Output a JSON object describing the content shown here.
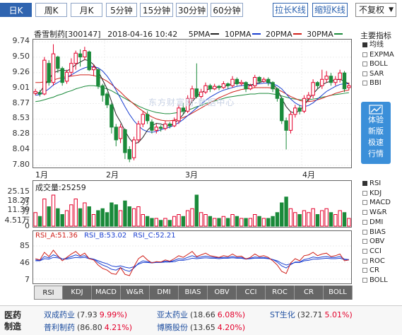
{
  "toolbar": {
    "periods": [
      "日K",
      "周K",
      "月K",
      "5分钟",
      "15分钟",
      "30分钟",
      "60分钟"
    ],
    "active_period": 0,
    "zoom_in": "拉长K线",
    "zoom_out": "缩短K线",
    "adjust": "不复权"
  },
  "header": {
    "stock": "香雪制药[300147]",
    "datetime": "2018-04-16 10:42",
    "ma5": "5PMA",
    "ma10": "10PMA",
    "ma20": "20PMA",
    "ma30": "30PMA"
  },
  "main_indicators": {
    "title": "主要指标",
    "items": [
      "均线",
      "EXPMA",
      "BOLL",
      "SAR",
      "BBI"
    ],
    "selected": 0
  },
  "promo": {
    "text": [
      "体验",
      "新版",
      "极速",
      "行情"
    ]
  },
  "watermark": "东方财富网-数据中心",
  "price_axis": [
    "9.74",
    "9.50",
    "9.26",
    "9.01",
    "8.77",
    "8.53",
    "8.28",
    "8.04",
    "7.80"
  ],
  "month_labels": [
    "1月",
    "2月",
    "3月",
    "4月"
  ],
  "volume": {
    "title": "成交量",
    "value": "25259",
    "axis": [
      "25.15万",
      "18.27万",
      "11.39万",
      "4.51万",
      "0"
    ]
  },
  "rsi": {
    "a_label": "RSI_A:51.36",
    "b_label": "RSI_B:53.02",
    "c_label": "RSI_C:52.21",
    "axis": [
      "85",
      "46",
      "7"
    ]
  },
  "side_indicators": {
    "items": [
      "RSI",
      "KDJ",
      "MACD",
      "W&R",
      "DMI",
      "BIAS",
      "OBV",
      "CCI",
      "ROC",
      "CR",
      "BOLL"
    ],
    "selected": 0
  },
  "tabs": {
    "items": [
      "RSI",
      "KDJ",
      "MACD",
      "W&R",
      "DMI",
      "BIAS",
      "OBV",
      "CCI",
      "ROC",
      "CR",
      "BOLL"
    ],
    "active": 0
  },
  "news": {
    "sector": "医药\n制造",
    "items": [
      {
        "name": "双成药业",
        "price": "(7.93",
        "pct": "9.99%)"
      },
      {
        "name": "亚太药业",
        "price": "(18.66",
        "pct": "6.08%)"
      },
      {
        "name": "ST生化",
        "price": "(32.71",
        "pct": "5.01%)"
      },
      {
        "name": "普利制药",
        "price": "(86.80",
        "pct": "4.21%)"
      },
      {
        "name": "博腾股份",
        "price": "(13.65",
        "pct": "4.20%)"
      }
    ]
  },
  "colors": {
    "up": "#e4002b",
    "down": "#1a8a3a",
    "accent": "#2f64b0",
    "ma5": "#222222",
    "ma10": "#1a3fd0",
    "ma20": "#d0201a",
    "ma30": "#1a8a3a"
  },
  "chart_data": {
    "type": "candlestick",
    "ylim": [
      7.8,
      9.74
    ],
    "candles": [
      [
        8.93,
        8.96,
        8.9,
        9.0
      ],
      [
        8.94,
        8.92,
        8.88,
        8.98
      ],
      [
        8.92,
        9.45,
        8.9,
        9.5
      ],
      [
        9.4,
        9.1,
        9.05,
        9.45
      ],
      [
        9.1,
        9.55,
        9.05,
        9.7
      ],
      [
        9.5,
        9.32,
        9.25,
        9.52
      ],
      [
        9.32,
        9.1,
        9.05,
        9.35
      ],
      [
        9.12,
        9.26,
        9.08,
        9.3
      ],
      [
        9.26,
        9.4,
        9.2,
        9.48
      ],
      [
        9.4,
        9.56,
        9.3,
        9.6
      ],
      [
        9.55,
        9.5,
        9.35,
        9.62
      ],
      [
        9.5,
        9.6,
        9.45,
        9.66
      ],
      [
        9.58,
        9.3,
        9.28,
        9.6
      ],
      [
        9.3,
        9.34,
        9.2,
        9.38
      ],
      [
        9.3,
        9.05,
        9.0,
        9.32
      ],
      [
        9.05,
        8.9,
        8.8,
        9.08
      ],
      [
        8.92,
        8.75,
        8.7,
        8.95
      ],
      [
        8.75,
        8.4,
        8.3,
        8.78
      ],
      [
        8.4,
        8.2,
        8.1,
        8.45
      ],
      [
        8.22,
        8.4,
        8.15,
        8.45
      ],
      [
        8.36,
        8.0,
        7.9,
        8.38
      ],
      [
        8.05,
        7.9,
        7.85,
        8.1
      ],
      [
        7.92,
        8.2,
        7.88,
        8.25
      ],
      [
        8.2,
        8.45,
        8.15,
        8.5
      ],
      [
        8.45,
        8.6,
        8.4,
        8.65
      ],
      [
        8.6,
        8.5,
        8.45,
        8.65
      ],
      [
        8.48,
        8.35,
        8.3,
        8.52
      ],
      [
        8.35,
        8.4,
        8.3,
        8.45
      ],
      [
        8.4,
        8.38,
        8.33,
        8.43
      ],
      [
        8.38,
        8.45,
        8.35,
        8.5
      ],
      [
        8.45,
        8.42,
        8.38,
        8.48
      ],
      [
        8.42,
        8.5,
        8.4,
        8.55
      ],
      [
        8.5,
        8.7,
        8.45,
        8.75
      ],
      [
        8.7,
        8.65,
        8.6,
        8.78
      ],
      [
        8.65,
        8.85,
        8.62,
        8.9
      ],
      [
        8.85,
        9.0,
        8.8,
        9.05
      ],
      [
        9.0,
        8.88,
        8.85,
        9.4
      ],
      [
        8.88,
        8.95,
        8.85,
        9.0
      ],
      [
        8.95,
        9.05,
        8.92,
        9.1
      ],
      [
        9.05,
        9.0,
        8.95,
        9.08
      ],
      [
        9.0,
        9.04,
        8.98,
        9.08
      ],
      [
        9.04,
        9.02,
        8.98,
        9.06
      ],
      [
        9.02,
        9.08,
        9.0,
        9.12
      ],
      [
        9.08,
        9.05,
        9.0,
        9.1
      ],
      [
        9.05,
        9.15,
        9.02,
        9.2
      ],
      [
        9.15,
        9.08,
        9.05,
        9.18
      ],
      [
        9.08,
        9.1,
        9.05,
        9.14
      ],
      [
        9.1,
        9.0,
        8.95,
        9.12
      ],
      [
        9.0,
        9.05,
        8.98,
        9.08
      ],
      [
        9.05,
        9.18,
        9.02,
        9.22
      ],
      [
        9.18,
        9.12,
        9.08,
        9.2
      ],
      [
        9.12,
        9.15,
        9.1,
        9.18
      ],
      [
        9.15,
        9.1,
        9.05,
        9.18
      ],
      [
        9.1,
        9.0,
        8.95,
        9.12
      ],
      [
        9.0,
        8.85,
        8.8,
        9.02
      ],
      [
        8.85,
        8.5,
        8.45,
        8.88
      ],
      [
        8.5,
        8.35,
        8.05,
        8.55
      ],
      [
        8.35,
        8.6,
        8.3,
        8.65
      ],
      [
        8.6,
        8.7,
        8.55,
        8.75
      ],
      [
        8.7,
        8.65,
        8.6,
        8.75
      ],
      [
        8.65,
        8.85,
        8.62,
        8.9
      ],
      [
        8.85,
        8.9,
        8.8,
        8.95
      ],
      [
        8.9,
        9.1,
        8.85,
        9.15
      ],
      [
        9.1,
        9.05,
        9.0,
        9.12
      ],
      [
        9.05,
        9.15,
        9.0,
        9.3
      ],
      [
        9.15,
        9.2,
        9.1,
        9.28
      ],
      [
        9.2,
        9.1,
        9.05,
        9.25
      ],
      [
        9.1,
        9.15,
        9.05,
        9.2
      ],
      [
        9.15,
        9.25,
        9.1,
        9.3
      ],
      [
        9.25,
        9.0,
        8.95,
        9.28
      ],
      [
        9.02,
        9.05,
        8.98,
        9.1
      ]
    ],
    "ma5": [
      8.92,
      8.95,
      9.05,
      9.15,
      9.25,
      9.28,
      9.3,
      9.28,
      9.32,
      9.38,
      9.42,
      9.46,
      9.44,
      9.38,
      9.28,
      9.14,
      9.0,
      8.8,
      8.6,
      8.48,
      8.34,
      8.22,
      8.14,
      8.16,
      8.24,
      8.35,
      8.42,
      8.46,
      8.45,
      8.42,
      8.42,
      8.46,
      8.52,
      8.6,
      8.7,
      8.8,
      8.88,
      8.94,
      8.98,
      9.0,
      9.02,
      9.03,
      9.04,
      9.05,
      9.08,
      9.1,
      9.1,
      9.08,
      9.06,
      9.08,
      9.1,
      9.12,
      9.12,
      9.08,
      9.0,
      8.85,
      8.72,
      8.64,
      8.62,
      8.66,
      8.74,
      8.84,
      8.92,
      9.0,
      9.06,
      9.1,
      9.12,
      9.14,
      9.15,
      9.12,
      9.08
    ],
    "ma10": [
      8.9,
      8.91,
      8.95,
      9.0,
      9.06,
      9.1,
      9.14,
      9.18,
      9.22,
      9.26,
      9.3,
      9.33,
      9.35,
      9.35,
      9.33,
      9.28,
      9.2,
      9.1,
      8.98,
      8.85,
      8.72,
      8.6,
      8.5,
      8.42,
      8.36,
      8.33,
      8.32,
      8.33,
      8.36,
      8.38,
      8.4,
      8.43,
      8.47,
      8.52,
      8.58,
      8.64,
      8.7,
      8.76,
      8.82,
      8.87,
      8.91,
      8.95,
      8.98,
      9.0,
      9.02,
      9.04,
      9.05,
      9.06,
      9.06,
      9.07,
      9.08,
      9.09,
      9.09,
      9.08,
      9.05,
      9.0,
      8.92,
      8.84,
      8.78,
      8.74,
      8.72,
      8.74,
      8.78,
      8.84,
      8.9,
      8.96,
      9.0,
      9.04,
      9.07,
      9.08,
      9.08
    ],
    "ma20": [
      9.1,
      9.1,
      9.11,
      9.12,
      9.14,
      9.16,
      9.18,
      9.19,
      9.2,
      9.21,
      9.22,
      9.22,
      9.22,
      9.21,
      9.19,
      9.16,
      9.12,
      9.07,
      9.01,
      8.95,
      8.88,
      8.82,
      8.76,
      8.7,
      8.65,
      8.6,
      8.56,
      8.53,
      8.51,
      8.5,
      8.5,
      8.51,
      8.53,
      8.55,
      8.58,
      8.62,
      8.66,
      8.7,
      8.74,
      8.78,
      8.82,
      8.86,
      8.89,
      8.92,
      8.95,
      8.97,
      8.99,
      9.0,
      9.01,
      9.02,
      9.02,
      9.02,
      9.02,
      9.01,
      8.99,
      8.96,
      8.92,
      8.88,
      8.85,
      8.82,
      8.8,
      8.8,
      8.81,
      8.83,
      8.85,
      8.88,
      8.9,
      8.93,
      8.95,
      8.97,
      8.98
    ],
    "ma30": [
      8.8,
      8.81,
      8.83,
      8.85,
      8.87,
      8.9,
      8.92,
      8.95,
      8.97,
      9.0,
      9.02,
      9.04,
      9.05,
      9.05,
      9.04,
      9.02,
      9.0,
      8.97,
      8.93,
      8.89,
      8.85,
      8.81,
      8.77,
      8.73,
      8.7,
      8.67,
      8.65,
      8.63,
      8.62,
      8.61,
      8.61,
      8.62,
      8.63,
      8.65,
      8.67,
      8.69,
      8.72,
      8.74,
      8.77,
      8.79,
      8.81,
      8.83,
      8.85,
      8.87,
      8.88,
      8.89,
      8.9,
      8.91,
      8.92,
      8.92,
      8.93,
      8.93,
      8.93,
      8.92,
      8.91,
      8.89,
      8.87,
      8.85,
      8.84,
      8.83,
      8.83,
      8.83,
      8.84,
      8.85,
      8.87,
      8.88,
      8.9,
      8.91,
      8.92,
      8.93,
      8.94
    ],
    "volume": [
      7,
      5,
      14,
      10,
      16,
      9,
      6,
      8,
      11,
      14,
      9,
      12,
      10,
      6,
      8,
      9,
      7,
      12,
      11,
      8,
      13,
      10,
      9,
      10,
      6,
      5,
      4,
      4,
      3,
      4,
      3,
      5,
      6,
      5,
      8,
      9,
      16,
      7,
      6,
      5,
      4,
      4,
      5,
      4,
      6,
      5,
      4,
      4,
      4,
      6,
      5,
      4,
      4,
      5,
      7,
      12,
      15,
      9,
      7,
      6,
      8,
      7,
      9,
      6,
      8,
      9,
      7,
      6,
      8,
      7,
      4
    ],
    "rsi_a": [
      55,
      52,
      70,
      60,
      75,
      62,
      50,
      58,
      66,
      72,
      62,
      68,
      55,
      52,
      40,
      32,
      28,
      20,
      18,
      34,
      18,
      15,
      36,
      55,
      62,
      52,
      45,
      48,
      47,
      52,
      49,
      55,
      62,
      58,
      65,
      72,
      60,
      64,
      68,
      62,
      60,
      58,
      62,
      60,
      66,
      60,
      61,
      54,
      58,
      66,
      60,
      62,
      58,
      50,
      40,
      25,
      20,
      45,
      55,
      50,
      62,
      64,
      70,
      62,
      66,
      68,
      60,
      62,
      66,
      50,
      52
    ],
    "rsi_b": [
      52,
      51,
      60,
      57,
      64,
      60,
      54,
      56,
      60,
      64,
      60,
      62,
      56,
      54,
      46,
      40,
      36,
      30,
      28,
      34,
      28,
      25,
      33,
      44,
      50,
      48,
      46,
      47,
      47,
      49,
      48,
      51,
      55,
      54,
      58,
      62,
      58,
      59,
      61,
      59,
      58,
      57,
      58,
      58,
      60,
      58,
      58,
      55,
      56,
      59,
      58,
      58,
      56,
      53,
      47,
      38,
      33,
      41,
      47,
      47,
      53,
      55,
      59,
      57,
      59,
      60,
      58,
      58,
      60,
      54,
      53
    ],
    "rsi_c": [
      50,
      50,
      55,
      54,
      58,
      57,
      54,
      54,
      56,
      58,
      57,
      58,
      55,
      54,
      50,
      46,
      43,
      38,
      36,
      38,
      35,
      33,
      36,
      42,
      46,
      46,
      45,
      46,
      46,
      47,
      47,
      48,
      51,
      51,
      53,
      56,
      55,
      56,
      57,
      56,
      56,
      55,
      56,
      56,
      57,
      56,
      56,
      54,
      55,
      56,
      56,
      56,
      55,
      53,
      50,
      44,
      40,
      43,
      46,
      46,
      50,
      51,
      54,
      54,
      55,
      56,
      55,
      55,
      56,
      53,
      52
    ]
  }
}
